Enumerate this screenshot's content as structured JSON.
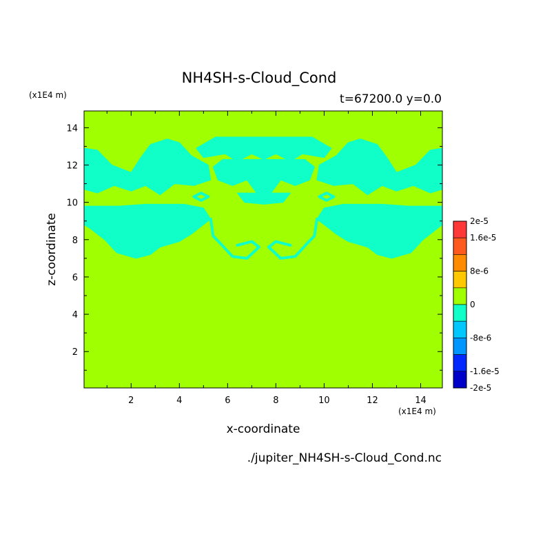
{
  "chart_data": {
    "type": "heatmap",
    "title": "NH4SH-s-Cloud_Cond",
    "subtitle": "t=67200.0 y=0.0",
    "xlabel": "x-coordinate",
    "ylabel": "z-coordinate",
    "x_unit": "(x1E4 m)",
    "y_unit": "(x1E4 m)",
    "source_file": "./jupiter_NH4SH-s-Cloud_Cond.nc",
    "xlim": [
      0.05,
      14.9
    ],
    "ylim": [
      0.05,
      14.9
    ],
    "xticks": [
      2,
      4,
      6,
      8,
      10,
      12,
      14
    ],
    "yticks": [
      2,
      4,
      6,
      8,
      10,
      12,
      14
    ],
    "background_value": 0,
    "background_color": "#a0ff00",
    "negative_region_color": "#10ffc8",
    "regions_value": -4e-06,
    "regions": [
      {
        "name": "left-lower-cloud",
        "polygon": [
          [
            0.05,
            9.8
          ],
          [
            1.5,
            9.8
          ],
          [
            2.6,
            9.9
          ],
          [
            4.2,
            9.9
          ],
          [
            5.0,
            9.7
          ],
          [
            5.3,
            9.1
          ],
          [
            4.8,
            8.6
          ],
          [
            4.5,
            8.3
          ],
          [
            4.0,
            7.9
          ],
          [
            3.2,
            7.6
          ],
          [
            2.8,
            7.2
          ],
          [
            2.2,
            7.0
          ],
          [
            1.4,
            7.3
          ],
          [
            0.9,
            8.0
          ],
          [
            0.3,
            8.6
          ],
          [
            0.05,
            8.8
          ]
        ]
      },
      {
        "name": "right-lower-cloud",
        "polygon": [
          [
            14.9,
            9.8
          ],
          [
            13.5,
            9.8
          ],
          [
            12.4,
            9.9
          ],
          [
            10.8,
            9.9
          ],
          [
            10.0,
            9.7
          ],
          [
            9.7,
            9.1
          ],
          [
            10.2,
            8.6
          ],
          [
            10.5,
            8.3
          ],
          [
            11.0,
            7.9
          ],
          [
            11.8,
            7.6
          ],
          [
            12.2,
            7.2
          ],
          [
            12.8,
            7.0
          ],
          [
            13.6,
            7.3
          ],
          [
            14.1,
            8.0
          ],
          [
            14.7,
            8.6
          ],
          [
            14.9,
            8.8
          ]
        ]
      },
      {
        "name": "left-upper-cloud",
        "polygon": [
          [
            0.05,
            12.9
          ],
          [
            0.6,
            12.8
          ],
          [
            1.2,
            12.0
          ],
          [
            2.0,
            11.6
          ],
          [
            2.4,
            12.4
          ],
          [
            2.8,
            13.1
          ],
          [
            3.5,
            13.4
          ],
          [
            4.0,
            13.2
          ],
          [
            4.5,
            12.5
          ],
          [
            5.2,
            12.0
          ],
          [
            5.3,
            11.2
          ],
          [
            4.6,
            10.9
          ],
          [
            3.8,
            11.0
          ],
          [
            3.2,
            10.4
          ],
          [
            2.6,
            10.9
          ],
          [
            2.0,
            10.6
          ],
          [
            1.3,
            10.9
          ],
          [
            0.6,
            10.5
          ],
          [
            0.05,
            10.7
          ]
        ]
      },
      {
        "name": "right-upper-cloud",
        "polygon": [
          [
            14.9,
            12.9
          ],
          [
            14.4,
            12.8
          ],
          [
            13.8,
            12.0
          ],
          [
            13.0,
            11.6
          ],
          [
            12.6,
            12.4
          ],
          [
            12.2,
            13.1
          ],
          [
            11.5,
            13.4
          ],
          [
            11.0,
            13.2
          ],
          [
            10.5,
            12.5
          ],
          [
            9.8,
            12.0
          ],
          [
            9.7,
            11.2
          ],
          [
            10.4,
            10.9
          ],
          [
            11.2,
            11.0
          ],
          [
            11.8,
            10.4
          ],
          [
            12.4,
            10.9
          ],
          [
            13.0,
            10.6
          ],
          [
            13.7,
            10.9
          ],
          [
            14.4,
            10.5
          ],
          [
            14.9,
            10.7
          ]
        ]
      },
      {
        "name": "top-center-band",
        "polygon": [
          [
            5.5,
            13.5
          ],
          [
            9.5,
            13.5
          ],
          [
            10.3,
            12.9
          ],
          [
            10.0,
            12.4
          ],
          [
            9.1,
            12.6
          ],
          [
            8.6,
            12.2
          ],
          [
            8.0,
            12.6
          ],
          [
            7.5,
            12.3
          ],
          [
            7.0,
            12.6
          ],
          [
            6.4,
            12.2
          ],
          [
            5.9,
            12.6
          ],
          [
            5.0,
            12.4
          ],
          [
            4.7,
            12.9
          ]
        ]
      },
      {
        "name": "central-upper-cloud",
        "polygon": [
          [
            5.8,
            12.3
          ],
          [
            9.2,
            12.3
          ],
          [
            9.6,
            11.9
          ],
          [
            9.4,
            11.2
          ],
          [
            8.8,
            10.9
          ],
          [
            8.2,
            11.2
          ],
          [
            7.8,
            10.5
          ],
          [
            7.2,
            10.5
          ],
          [
            6.8,
            11.2
          ],
          [
            6.2,
            10.9
          ],
          [
            5.6,
            11.2
          ],
          [
            5.4,
            11.9
          ]
        ]
      },
      {
        "name": "central-lower-lobe",
        "polygon": [
          [
            6.4,
            10.5
          ],
          [
            8.6,
            10.5
          ],
          [
            8.3,
            10.0
          ],
          [
            7.5,
            9.9
          ],
          [
            6.7,
            10.0
          ]
        ]
      }
    ],
    "outlines": [
      {
        "name": "left-arc",
        "points": [
          [
            5.3,
            9.1
          ],
          [
            5.4,
            8.2
          ],
          [
            5.7,
            7.8
          ],
          [
            6.2,
            7.1
          ],
          [
            6.8,
            7.0
          ],
          [
            7.3,
            7.6
          ],
          [
            7.0,
            7.9
          ],
          [
            6.4,
            7.7
          ]
        ]
      },
      {
        "name": "right-arc",
        "points": [
          [
            9.7,
            9.1
          ],
          [
            9.6,
            8.2
          ],
          [
            9.3,
            7.8
          ],
          [
            8.8,
            7.1
          ],
          [
            8.2,
            7.0
          ],
          [
            7.7,
            7.6
          ],
          [
            8.0,
            7.9
          ],
          [
            8.6,
            7.7
          ]
        ]
      },
      {
        "name": "left-small-ring",
        "points": [
          [
            4.6,
            10.3
          ],
          [
            4.9,
            10.5
          ],
          [
            5.2,
            10.3
          ],
          [
            4.9,
            10.1
          ],
          [
            4.6,
            10.3
          ]
        ]
      },
      {
        "name": "right-small-ring",
        "points": [
          [
            10.4,
            10.3
          ],
          [
            10.1,
            10.5
          ],
          [
            9.8,
            10.3
          ],
          [
            10.1,
            10.1
          ],
          [
            10.4,
            10.3
          ]
        ]
      }
    ],
    "colorbar": {
      "min": -2e-05,
      "max": 2e-05,
      "labels": [
        "2e-5",
        "1.6e-5",
        "8e-6",
        "0",
        "-8e-6",
        "-1.6e-5",
        "-2e-5"
      ],
      "label_values": [
        2e-05,
        1.6e-05,
        8e-06,
        0,
        -8e-06,
        -1.6e-05,
        -2e-05
      ],
      "bins": [
        {
          "lo": 1.6e-05,
          "hi": 2e-05,
          "color": "#ff3838"
        },
        {
          "lo": 1.2e-05,
          "hi": 1.6e-05,
          "color": "#ff5a1e"
        },
        {
          "lo": 8e-06,
          "hi": 1.2e-05,
          "color": "#ff8c00"
        },
        {
          "lo": 4e-06,
          "hi": 8e-06,
          "color": "#ffc800"
        },
        {
          "lo": 0,
          "hi": 4e-06,
          "color": "#a0ff00"
        },
        {
          "lo": -4e-06,
          "hi": 0,
          "color": "#10ffc8"
        },
        {
          "lo": -8e-06,
          "hi": -4e-06,
          "color": "#00c8ff"
        },
        {
          "lo": -1.2e-05,
          "hi": -8e-06,
          "color": "#0096ff"
        },
        {
          "lo": -1.6e-05,
          "hi": -1.2e-05,
          "color": "#0028ff"
        },
        {
          "lo": -2e-05,
          "hi": -1.6e-05,
          "color": "#0000c8"
        }
      ]
    }
  }
}
